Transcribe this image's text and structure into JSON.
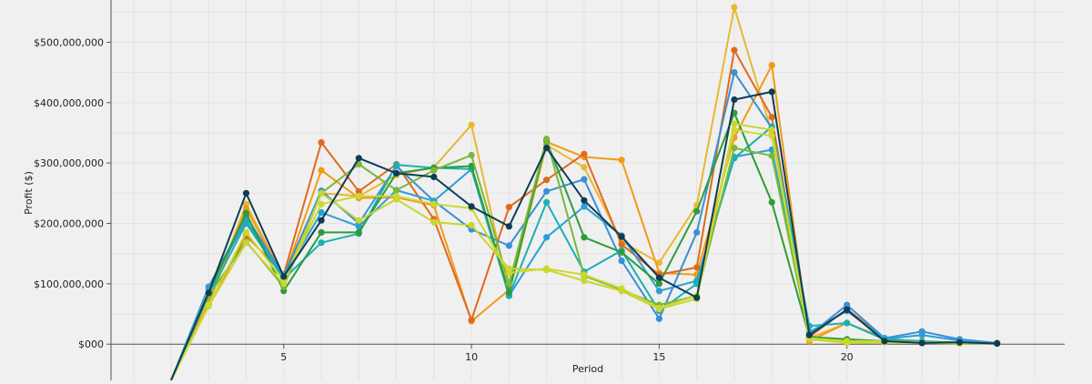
{
  "chart_data": {
    "type": "line",
    "xlabel": "Period",
    "ylabel": "Profit ($)",
    "x_ticks": [
      5,
      10,
      15,
      20
    ],
    "y_ticks": [
      {
        "value": 0,
        "label": "$000"
      },
      {
        "value": 100000000,
        "label": "$100,000,000"
      },
      {
        "value": 200000000,
        "label": "$200,000,000"
      },
      {
        "value": 300000000,
        "label": "$300,000,000"
      },
      {
        "value": 400000000,
        "label": "$400,000,000"
      },
      {
        "value": 500000000,
        "label": "$500,000,000"
      }
    ],
    "xlim": [
      0.4,
      25.8
    ],
    "ylim": [
      -60000000,
      570000000
    ],
    "grid": true,
    "x": [
      3,
      4,
      5,
      6,
      7,
      8,
      9,
      10,
      11,
      12,
      13,
      14,
      15,
      16,
      17,
      18,
      19,
      20,
      21,
      22,
      23,
      24
    ],
    "start_point": {
      "x": 2,
      "y": -60000000
    },
    "series": [
      {
        "color": "#e8b830",
        "values": [
          70,
          232,
          110,
          250,
          245,
          280,
          293,
          363,
          85,
          330,
          293,
          170,
          135,
          230,
          558,
          350,
          10,
          35,
          8,
          5,
          2,
          1
        ]
      },
      {
        "color": "#f29a16",
        "values": [
          68,
          225,
          110,
          288,
          242,
          243,
          230,
          38,
          90,
          335,
          310,
          305,
          118,
          115,
          342,
          462,
          5,
          35,
          10,
          3,
          2,
          1
        ]
      },
      {
        "color": "#e06a1c",
        "values": [
          65,
          180,
          115,
          334,
          253,
          298,
          207,
          40,
          227,
          272,
          315,
          165,
          115,
          127,
          487,
          376,
          12,
          58,
          9,
          4,
          3,
          1
        ]
      },
      {
        "color": "#3a8fd6",
        "values": [
          95,
          212,
          113,
          254,
          200,
          295,
          237,
          190,
          163,
          253,
          273,
          138,
          42,
          185,
          450,
          358,
          15,
          65,
          10,
          21,
          8,
          2
        ]
      },
      {
        "color": "#2b9fd8",
        "values": [
          92,
          205,
          112,
          218,
          195,
          255,
          237,
          290,
          80,
          177,
          228,
          180,
          88,
          105,
          310,
          322,
          20,
          55,
          9,
          15,
          6,
          1
        ]
      },
      {
        "color": "#1ab0b2",
        "values": [
          80,
          200,
          108,
          168,
          183,
          297,
          292,
          290,
          80,
          235,
          120,
          155,
          55,
          100,
          308,
          360,
          30,
          35,
          8,
          5,
          2,
          1
        ]
      },
      {
        "color": "#2e9c3a",
        "values": [
          85,
          217,
          88,
          185,
          185,
          283,
          292,
          295,
          85,
          337,
          177,
          152,
          100,
          220,
          383,
          235,
          12,
          8,
          5,
          3,
          2,
          1
        ]
      },
      {
        "color": "#7ab83a",
        "values": [
          80,
          170,
          95,
          250,
          298,
          255,
          288,
          313,
          100,
          340,
          113,
          90,
          65,
          80,
          325,
          312,
          10,
          3,
          4,
          2,
          1,
          1
        ]
      },
      {
        "color": "#c8d62e",
        "values": [
          63,
          168,
          100,
          250,
          205,
          240,
          202,
          197,
          125,
          123,
          105,
          88,
          58,
          75,
          365,
          355,
          8,
          2,
          3,
          2,
          1,
          1
        ]
      },
      {
        "color": "#ccd830",
        "values": [
          65,
          185,
          105,
          232,
          245,
          245,
          232,
          225,
          118,
          125,
          115,
          92,
          60,
          80,
          355,
          345,
          10,
          5,
          5,
          3,
          2,
          1
        ]
      },
      {
        "color": "#0d3d56",
        "values": [
          85,
          250,
          112,
          205,
          308,
          283,
          277,
          228,
          195,
          325,
          238,
          178,
          110,
          77,
          405,
          418,
          15,
          57,
          5,
          2,
          3,
          1
        ]
      }
    ],
    "value_unit_multiplier": 1000000
  }
}
